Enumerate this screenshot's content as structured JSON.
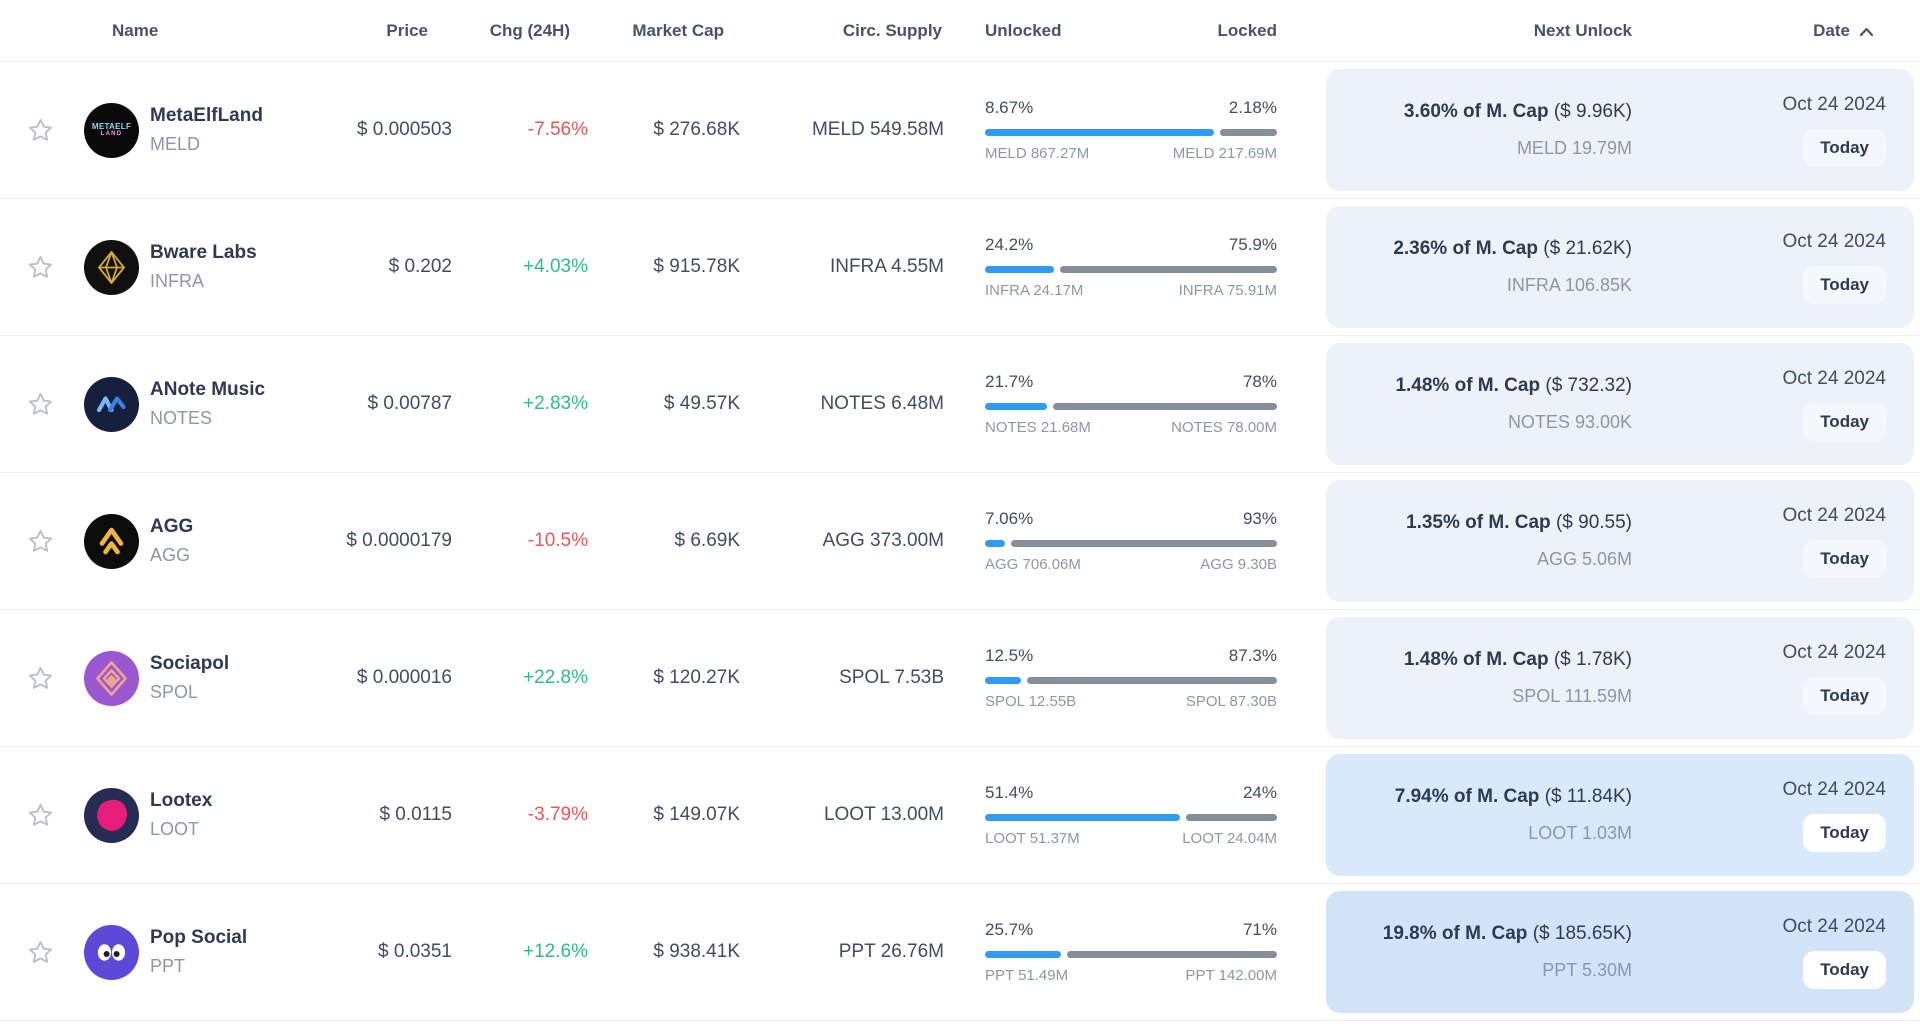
{
  "header": {
    "name": "Name",
    "price": "Price",
    "chg": "Chg (24H)",
    "mcap": "Market Cap",
    "supply": "Circ. Supply",
    "unlocked": "Unlocked",
    "locked": "Locked",
    "next_unlock": "Next Unlock",
    "date": "Date",
    "sort_icon": "chevron-up-icon"
  },
  "colors": {
    "positive": "#2ebd85",
    "negative": "#eb5757",
    "bar_unlocked": "#2f9bf2",
    "bar_locked": "#858f99",
    "row_border": "#e9edf2",
    "header_text": "#45536b"
  },
  "rows": [
    {
      "name": "MetaElfLand",
      "ticker": "MELD",
      "price": "$ 0.000503",
      "chg": "-7.56%",
      "mcap": "$ 276.68K",
      "supply": "MELD 549.58M",
      "unlocked_pct": "8.67%",
      "locked_pct": "2.18%",
      "unlocked_amt": "MELD 867.27M",
      "locked_amt": "MELD 217.69M",
      "next_unlock_pct": "3.60% of M. Cap",
      "next_unlock_usd": "($ 9.96K)",
      "next_unlock_amt": "MELD 19.79M",
      "date": "Oct 24 2024",
      "badge": "Today",
      "panel_bg": "#edf2f9",
      "badge_bg": "#f4f7fb",
      "logo_bg": "#0a0a0a",
      "logo_icon": "metaelfland-logo"
    },
    {
      "name": "Bware Labs",
      "ticker": "INFRA",
      "price": "$ 0.202",
      "chg": "+4.03%",
      "mcap": "$ 915.78K",
      "supply": "INFRA 4.55M",
      "unlocked_pct": "24.2%",
      "locked_pct": "75.9%",
      "unlocked_amt": "INFRA 24.17M",
      "locked_amt": "INFRA 75.91M",
      "next_unlock_pct": "2.36% of M. Cap",
      "next_unlock_usd": "($ 21.62K)",
      "next_unlock_amt": "INFRA 106.85K",
      "date": "Oct 24 2024",
      "badge": "Today",
      "panel_bg": "#edf2f9",
      "badge_bg": "#f4f7fb",
      "logo_bg": "#101010",
      "logo_icon": "bware-diamond-logo"
    },
    {
      "name": "ANote Music",
      "ticker": "NOTES",
      "price": "$ 0.00787",
      "chg": "+2.83%",
      "mcap": "$ 49.57K",
      "supply": "NOTES 6.48M",
      "unlocked_pct": "21.7%",
      "locked_pct": "78%",
      "unlocked_amt": "NOTES 21.68M",
      "locked_amt": "NOTES 78.00M",
      "next_unlock_pct": "1.48% of M. Cap",
      "next_unlock_usd": "($ 732.32)",
      "next_unlock_amt": "NOTES 93.00K",
      "date": "Oct 24 2024",
      "badge": "Today",
      "panel_bg": "#edf2f9",
      "badge_bg": "#f4f7fb",
      "logo_bg": "#161f3d",
      "logo_icon": "anote-wave-logo"
    },
    {
      "name": "AGG",
      "ticker": "AGG",
      "price": "$ 0.0000179",
      "chg": "-10.5%",
      "mcap": "$ 6.69K",
      "supply": "AGG 373.00M",
      "unlocked_pct": "7.06%",
      "locked_pct": "93%",
      "unlocked_amt": "AGG 706.06M",
      "locked_amt": "AGG 9.30B",
      "next_unlock_pct": "1.35% of M. Cap",
      "next_unlock_usd": "($ 90.55)",
      "next_unlock_amt": "AGG 5.06M",
      "date": "Oct 24 2024",
      "badge": "Today",
      "panel_bg": "#edf2f9",
      "badge_bg": "#f4f7fb",
      "logo_bg": "#0c0c0c",
      "logo_icon": "agg-arrow-logo"
    },
    {
      "name": "Sociapol",
      "ticker": "SPOL",
      "price": "$ 0.000016",
      "chg": "+22.8%",
      "mcap": "$ 120.27K",
      "supply": "SPOL 7.53B",
      "unlocked_pct": "12.5%",
      "locked_pct": "87.3%",
      "unlocked_amt": "SPOL 12.55B",
      "locked_amt": "SPOL 87.30B",
      "next_unlock_pct": "1.48% of M. Cap",
      "next_unlock_usd": "($ 1.78K)",
      "next_unlock_amt": "SPOL 111.59M",
      "date": "Oct 24 2024",
      "badge": "Today",
      "panel_bg": "#edf2f9",
      "badge_bg": "#f4f7fb",
      "logo_bg": "#9a57cf",
      "logo_icon": "sociapol-diamond-logo"
    },
    {
      "name": "Lootex",
      "ticker": "LOOT",
      "price": "$ 0.0115",
      "chg": "-3.79%",
      "mcap": "$ 149.07K",
      "supply": "LOOT 13.00M",
      "unlocked_pct": "51.4%",
      "locked_pct": "24%",
      "unlocked_amt": "LOOT 51.37M",
      "locked_amt": "LOOT 24.04M",
      "next_unlock_pct": "7.94% of M. Cap",
      "next_unlock_usd": "($ 11.84K)",
      "next_unlock_amt": "LOOT 1.03M",
      "date": "Oct 24 2024",
      "badge": "Today",
      "panel_bg": "#d9e9fc",
      "badge_bg": "#ffffff",
      "logo_bg": "#262c52",
      "logo_icon": "lootex-blob-logo"
    },
    {
      "name": "Pop Social",
      "ticker": "PPT",
      "price": "$ 0.0351",
      "chg": "+12.6%",
      "mcap": "$ 938.41K",
      "supply": "PPT 26.76M",
      "unlocked_pct": "25.7%",
      "locked_pct": "71%",
      "unlocked_amt": "PPT 51.49M",
      "locked_amt": "PPT 142.00M",
      "next_unlock_pct": "19.8% of M. Cap",
      "next_unlock_usd": "($ 185.65K)",
      "next_unlock_amt": "PPT 5.30M",
      "date": "Oct 24 2024",
      "badge": "Today",
      "panel_bg": "#d3e4f9",
      "badge_bg": "#ffffff",
      "logo_bg": "#5b4ad8",
      "logo_icon": "popsocial-eyes-logo"
    }
  ]
}
